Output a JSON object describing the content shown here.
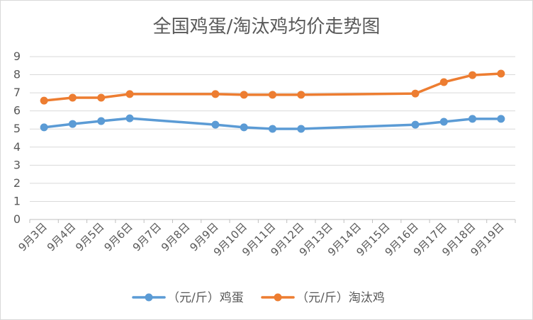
{
  "chart_data": {
    "type": "line",
    "title": "全国鸡蛋/淘汰鸡均价走势图",
    "categories": [
      "9月3日",
      "9月4日",
      "9月5日",
      "9月6日",
      "9月7日",
      "9月8日",
      "9月9日",
      "9月10日",
      "9月11日",
      "9月12日",
      "9月13日",
      "9月14日",
      "9月15日",
      "9月16日",
      "9月17日",
      "9月18日",
      "9月19日"
    ],
    "series": [
      {
        "name": "（元/斤）鸡蛋",
        "color": "#5B9BD5",
        "values": [
          5.09,
          5.28,
          5.44,
          5.59,
          null,
          null,
          5.24,
          5.09,
          5.01,
          5.01,
          null,
          null,
          null,
          5.24,
          5.4,
          5.56,
          5.56
        ]
      },
      {
        "name": "（元/斤）淘汰鸡",
        "color": "#ED7D31",
        "values": [
          6.57,
          6.73,
          6.73,
          6.93,
          null,
          null,
          6.93,
          6.89,
          6.89,
          6.89,
          null,
          null,
          null,
          6.96,
          7.59,
          7.98,
          8.06
        ]
      }
    ],
    "ylim": [
      0,
      9
    ],
    "yticks": [
      0,
      1,
      2,
      3,
      4,
      5,
      6,
      7,
      8,
      9
    ],
    "grid": true,
    "gridline_color": "#D9D9D9",
    "axis_color": "#BFBFBF",
    "text_color": "#595959",
    "legend": "bottom"
  }
}
